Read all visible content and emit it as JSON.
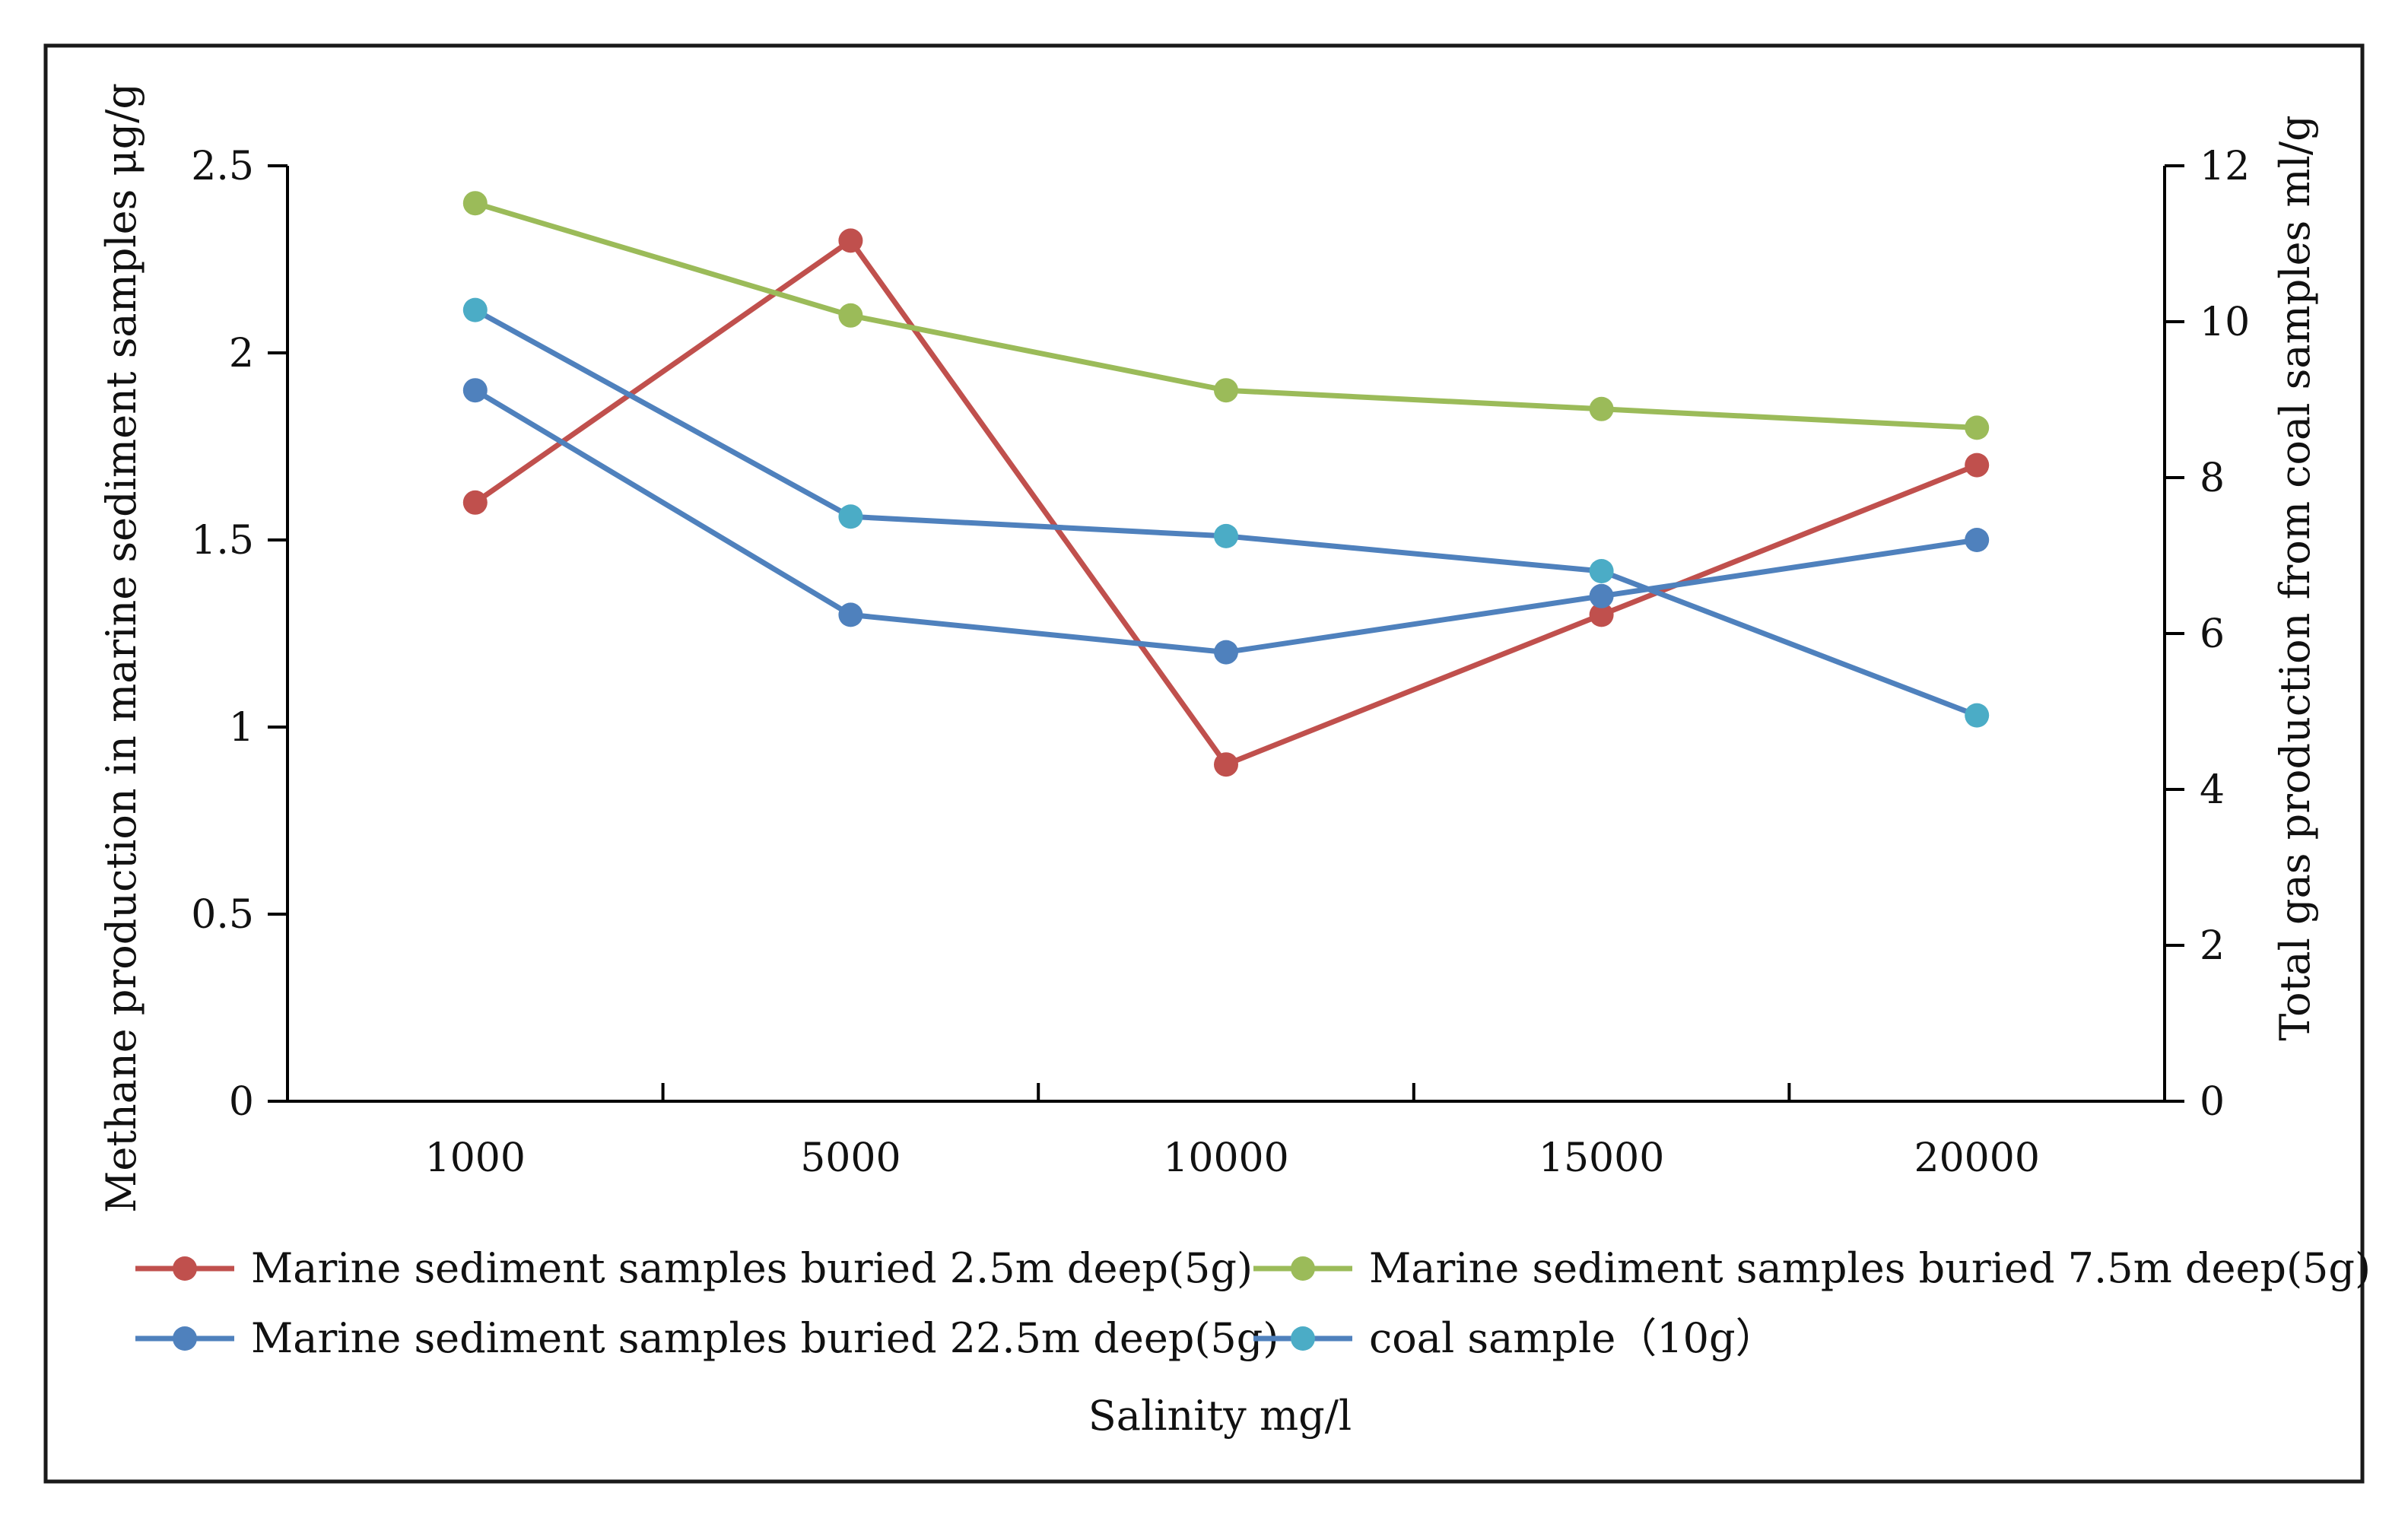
{
  "chart_data": {
    "type": "line",
    "title": "",
    "x": [
      "1000",
      "5000",
      "10000",
      "15000",
      "20000"
    ],
    "xlabel": "Salinity mg/l",
    "ylabel_left": "Methane production in marine sediment samples μg/g",
    "ylabel_right": "Total gas production from coal samples ml/g",
    "ylim_left": [
      0,
      2.5
    ],
    "yticks_left": [
      "0",
      "0.5",
      "1",
      "1.5",
      "2",
      "2.5"
    ],
    "ylim_right": [
      0,
      12
    ],
    "yticks_right": [
      "0",
      "2",
      "4",
      "6",
      "8",
      "10",
      "12"
    ],
    "series": [
      {
        "name": "Marine sediment samples buried 2.5m deep(5g)",
        "axis": "left",
        "color": "#c0504d",
        "values": [
          1.6,
          2.3,
          0.9,
          1.3,
          1.7
        ]
      },
      {
        "name": "Marine sediment samples buried 7.5m deep(5g)",
        "axis": "left",
        "color": "#9bbb59",
        "values": [
          2.4,
          2.1,
          1.9,
          1.85,
          1.8
        ]
      },
      {
        "name": "Marine sediment samples buried 22.5m deep(5g)",
        "axis": "left",
        "color": "#4f81bd",
        "values": [
          1.9,
          1.3,
          1.2,
          1.35,
          1.5
        ]
      },
      {
        "name": "coal sample（10g）",
        "axis": "right",
        "color": "#4bacc6",
        "line_color": "#4f81bd",
        "values": [
          10.15,
          7.5,
          7.25,
          6.8,
          4.95
        ]
      }
    ]
  }
}
